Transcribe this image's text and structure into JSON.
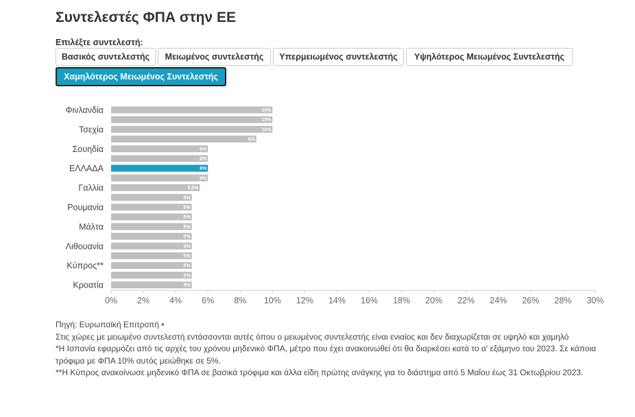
{
  "title": "Συντελεστές ΦΠΑ στην ΕΕ",
  "selector": {
    "label": "Επιλέξτε συντελεστή:",
    "options": [
      "Βασικός συντελεστής",
      "Μειωμένος συντελεστής",
      "Υπερμειωμένος συντελεστής",
      "Υψηλότερος Μειωμένος Συντελεστής",
      "Χαμηλότερος Μειωμένος Συντελεστής"
    ],
    "selected": "Χαμηλότερος Μειωμένος Συντελεστής"
  },
  "colors": {
    "bar": "#bfbfbf",
    "highlight": "#1a9ec2",
    "button_active": "#1a9ec2"
  },
  "chart_data": {
    "type": "bar",
    "orientation": "horizontal",
    "category_labels_visible": [
      "Φινλανδία",
      "Τσεχία",
      "Σουηδία",
      "ΕΛΛΑΔΑ",
      "Γαλλία",
      "Ρουμανία",
      "Μάλτα",
      "Λιθουανία",
      "Κύπρος**",
      "Κροατία"
    ],
    "bars": [
      {
        "label": "Φινλανδία",
        "value": 10,
        "value_label": "10%"
      },
      {
        "label": "",
        "value": 10,
        "value_label": "10%"
      },
      {
        "label": "Τσεχία",
        "value": 10,
        "value_label": "10%"
      },
      {
        "label": "",
        "value": 9,
        "value_label": "9%"
      },
      {
        "label": "Σουηδία",
        "value": 6,
        "value_label": "6%"
      },
      {
        "label": "",
        "value": 6,
        "value_label": "6%"
      },
      {
        "label": "ΕΛΛΑΔΑ",
        "value": 6,
        "value_label": "6%",
        "highlight": true
      },
      {
        "label": "",
        "value": 6,
        "value_label": "6%"
      },
      {
        "label": "Γαλλία",
        "value": 5.5,
        "value_label": "5.5%"
      },
      {
        "label": "",
        "value": 5,
        "value_label": "5%"
      },
      {
        "label": "Ρουμανία",
        "value": 5,
        "value_label": "5%"
      },
      {
        "label": "",
        "value": 5,
        "value_label": "5%"
      },
      {
        "label": "Μάλτα",
        "value": 5,
        "value_label": "5%"
      },
      {
        "label": "",
        "value": 5,
        "value_label": "5%"
      },
      {
        "label": "Λιθουανία",
        "value": 5,
        "value_label": "5%"
      },
      {
        "label": "",
        "value": 5,
        "value_label": "5%"
      },
      {
        "label": "Κύπρος**",
        "value": 5,
        "value_label": "5%"
      },
      {
        "label": "",
        "value": 5,
        "value_label": "5%"
      },
      {
        "label": "Κροατία",
        "value": 5,
        "value_label": "5%"
      }
    ],
    "xlim": [
      0,
      30
    ],
    "x_ticks": [
      0,
      2,
      4,
      6,
      8,
      10,
      12,
      14,
      16,
      18,
      20,
      22,
      24,
      26,
      28,
      30
    ],
    "x_tick_labels": [
      "0%",
      "2%",
      "4%",
      "6%",
      "8%",
      "10%",
      "12%",
      "14%",
      "16%",
      "18%",
      "20%",
      "22%",
      "24%",
      "26%",
      "28%",
      "30%"
    ],
    "grid": false
  },
  "footer": {
    "source": "Πηγή: Ευρωπαϊκή Επιτροπή •",
    "note1": "Στις χώρες με μειωμένο συντελεστή εντάσσονται αυτές όπου ο μειωμένος συντελεστής είναι ενιαίος και δεν διαχωρίζεται σε υψηλό και χαμηλό",
    "note2": "*Η Ισπανία εφαρμόζει από τις αρχές του χρόνου μηδενικό ΦΠΑ, μέτρο που έχει ανακοινωθεί ότι θα διαρκέσει κατά το α' εξάμηνο του 2023. Σε κάποια τρόφιμα με ΦΠΑ 10% αυτός μειώθηκε σε 5%.",
    "note3": "**Η Κύπρος ανακοίνωσε μηδενικό ΦΠΑ σε βασικά τρόφιμα και άλλα είδη πρώτης ανάγκης για το διάστημα από 5 Μαΐου έως 31 Οκτωβρίου 2023."
  }
}
